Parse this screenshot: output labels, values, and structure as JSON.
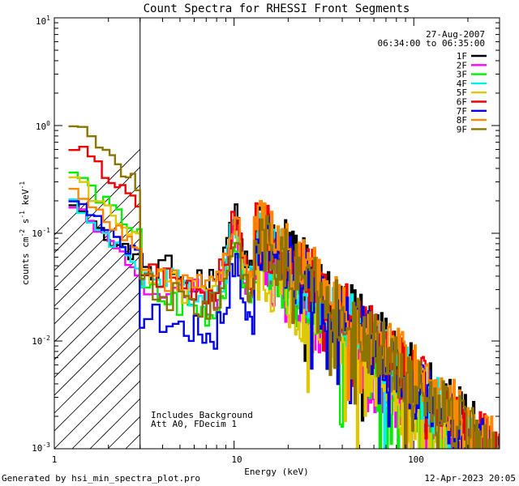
{
  "chart_data": {
    "type": "line",
    "title": "Count Spectra for RHESSI Front Segments",
    "xlabel": "Energy (keV)",
    "ylabel": "counts cm-2 s-1 keV-1",
    "xscale": "log",
    "yscale": "log",
    "xlim": [
      1,
      300
    ],
    "ylim": [
      0.001,
      10
    ],
    "x_ticks": [
      {
        "value": 1,
        "label": "1"
      },
      {
        "value": 10,
        "label": "10"
      },
      {
        "value": 100,
        "label": "100"
      }
    ],
    "y_ticks": [
      {
        "value": 10,
        "base": "10",
        "exp": "1"
      },
      {
        "value": 1,
        "base": "10",
        "exp": "0"
      },
      {
        "value": 0.1,
        "base": "10",
        "exp": "-1"
      },
      {
        "value": 0.01,
        "base": "10",
        "exp": "-2"
      },
      {
        "value": 0.001,
        "base": "10",
        "exp": "-3"
      }
    ],
    "ylabel_parts": {
      "a": "counts cm",
      "b": "-2",
      "c": " s",
      "d": "-1",
      "e": " keV",
      "f": "-1"
    },
    "hatched_region_kev": [
      1,
      3
    ],
    "date": "27-Aug-2007",
    "time_range": "06:34:00 to 06:35:00",
    "annotations": [
      "Includes Background",
      "Att A0, FDecim 1"
    ],
    "series": [
      {
        "name": "1F",
        "color": "#000000",
        "peak": 0.15,
        "low": 0.22,
        "tail": 0.0048,
        "seed": 1
      },
      {
        "name": "2F",
        "color": "#ff00ff",
        "peak": 0.11,
        "low": 0.19,
        "tail": 0.0022,
        "seed": 2
      },
      {
        "name": "3F",
        "color": "#00ee00",
        "peak": 0.085,
        "low": 0.42,
        "tail": 0.0026,
        "seed": 3
      },
      {
        "name": "4F",
        "color": "#00eeee",
        "peak": 0.12,
        "low": 0.21,
        "tail": 0.0038,
        "seed": 4
      },
      {
        "name": "5F",
        "color": "#e0c800",
        "peak": 0.11,
        "low": 0.37,
        "tail": 0.0018,
        "seed": 5
      },
      {
        "name": "6F",
        "color": "#ee0000",
        "peak": 0.13,
        "low": 0.75,
        "tail": 0.0045,
        "seed": 6
      },
      {
        "name": "7F",
        "color": "#0000ee",
        "peak": 0.05,
        "low": 0.25,
        "tail": 0.0038,
        "seed": 7
      },
      {
        "name": "8F",
        "color": "#ff8800",
        "peak": 0.13,
        "low": 0.31,
        "tail": 0.005,
        "seed": 8
      },
      {
        "name": "9F",
        "color": "#8b7500",
        "peak": 0.09,
        "low": 1.15,
        "tail": 0.004,
        "seed": 9
      }
    ]
  },
  "footer": {
    "generated_by": "Generated by hsi_min_spectra_plot.pro",
    "timestamp": "12-Apr-2023 20:05"
  }
}
